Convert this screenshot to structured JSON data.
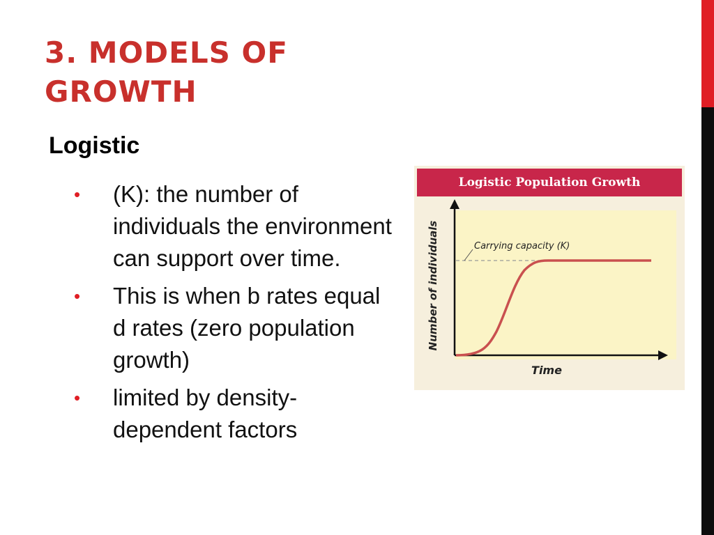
{
  "slide": {
    "title": "3. MODELS OF GROWTH",
    "subtitle": "Logistic",
    "bullets": [
      "(K): the number of individuals the environment can support over time.",
      "This is when b rates equal d rates (zero population growth)",
      "limited by density-dependent factors"
    ],
    "colors": {
      "title": "#c8302c",
      "accent_bar_top": "#e01e25",
      "accent_bar_bottom": "#0d0d0d",
      "bullet": "#e01e25"
    }
  },
  "figure": {
    "title": "Logistic Population Growth",
    "xlabel": "Time",
    "ylabel": "Number of individuals",
    "annotation": "Carrying capacity (K)",
    "colors": {
      "title_bar": "#c8264a",
      "plot_bg": "#fbf4c6",
      "curve": "#c9504f"
    }
  }
}
